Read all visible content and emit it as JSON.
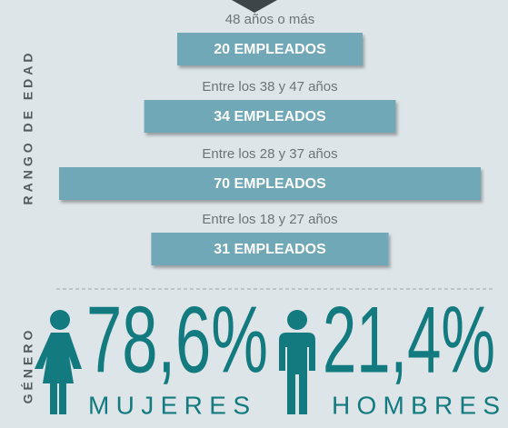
{
  "chart_data": [
    {
      "type": "bar",
      "y_label": "RANGO DE EDAD",
      "categories": [
        "48 años o más",
        "Entre los 38 y 47 años",
        "Entre los 28 y 37 años",
        "Entre los 18 y 27 años"
      ],
      "values": [
        20,
        34,
        70,
        31
      ],
      "value_labels": [
        "20 EMPLEADOS",
        "34 EMPLEADOS",
        "70 EMPLEADOS",
        "31 EMPLEADOS"
      ],
      "color": "#6fa8b8"
    },
    {
      "type": "stat",
      "y_label": "GÉNERO",
      "categories": [
        "MUJERES",
        "HOMBRES"
      ],
      "values": [
        78.6,
        21.4
      ],
      "value_labels": [
        "78,6%",
        "21,4%"
      ],
      "color": "#137a7f"
    }
  ]
}
